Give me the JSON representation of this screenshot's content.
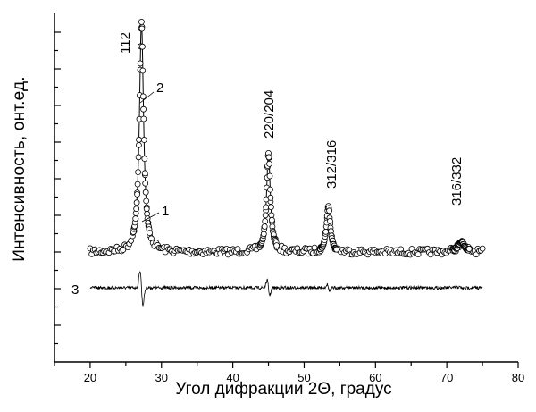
{
  "chart_data": {
    "type": "scatter",
    "xlabel": "Угол дифракции 2Θ, градус",
    "ylabel": "Интенсивность, онт.ед.",
    "xlim": [
      15,
      80
    ],
    "x_ticks": [
      "20",
      "30",
      "40",
      "50",
      "60",
      "70",
      "80"
    ],
    "y_ticks_labeled": false,
    "grid": false,
    "x_range_measured": [
      20,
      75
    ],
    "peaks": [
      {
        "label": "112",
        "x": 27.2,
        "relative_intensity": 1.0
      },
      {
        "label": "220/204",
        "x": 45.0,
        "relative_intensity": 0.43
      },
      {
        "label": "312/316",
        "x": 53.4,
        "relative_intensity": 0.2
      },
      {
        "label": "316/332",
        "x": 72.0,
        "relative_intensity": 0.04
      }
    ],
    "series": [
      {
        "name": "1",
        "style": "open-circles",
        "description_values_from_peaks": true
      },
      {
        "name": "2",
        "style": "line"
      },
      {
        "name": "3",
        "style": "difference-line"
      }
    ]
  }
}
